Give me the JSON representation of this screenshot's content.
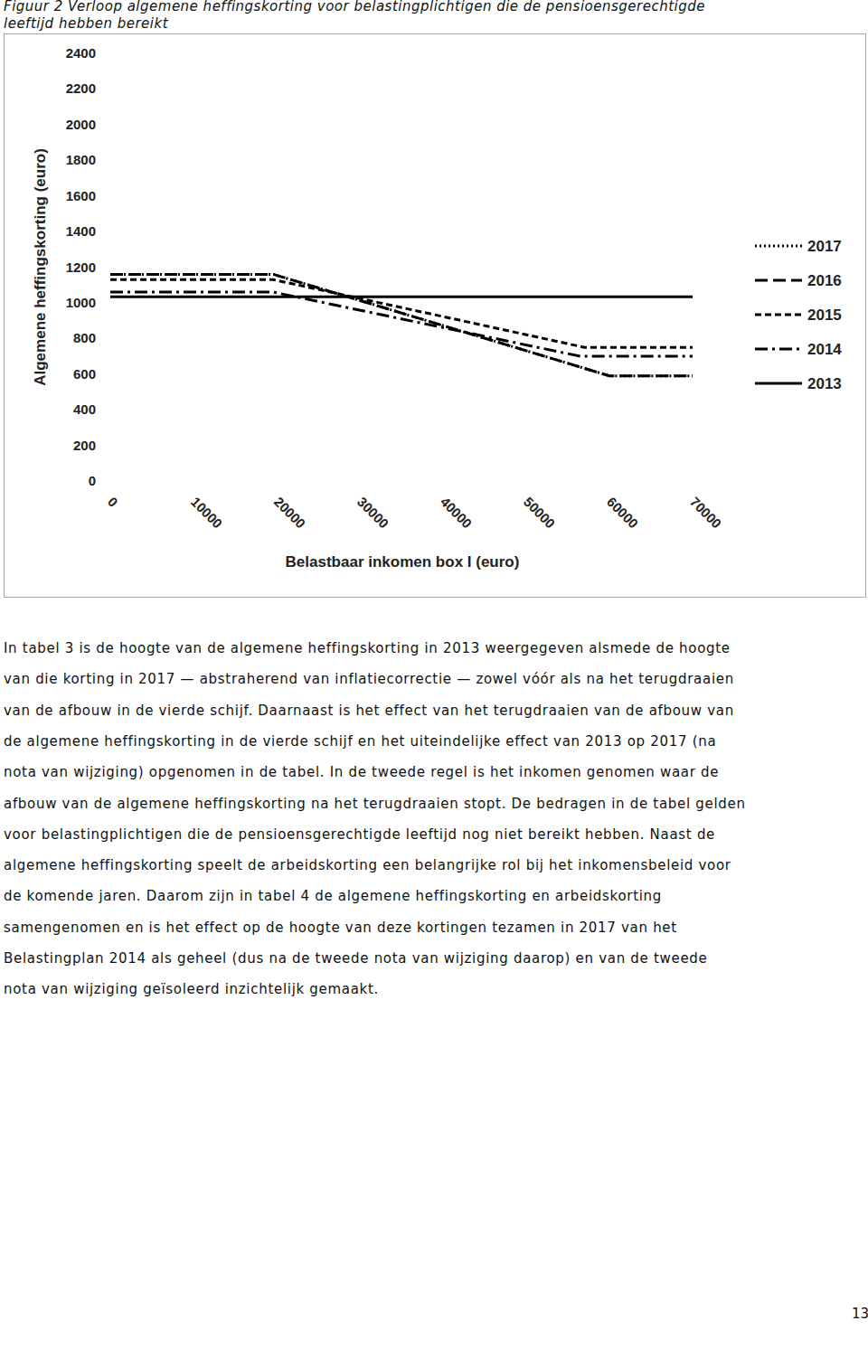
{
  "caption_lines": [
    "Figuur 2 Verloop algemene heffingskorting voor belastingplichtigen die de pensioensgerechtigde",
    "leeftijd hebben bereikt"
  ],
  "chart_data": {
    "type": "line",
    "x_label": "Belastbaar inkomen box I (euro)",
    "y_label": "Algemene heffingskorting (euro)",
    "xlim": [
      0,
      70000
    ],
    "xticks": [
      0,
      10000,
      20000,
      30000,
      40000,
      50000,
      60000,
      70000
    ],
    "ylim": [
      0,
      2400
    ],
    "yticks": [
      0,
      200,
      400,
      600,
      800,
      1000,
      1200,
      1400,
      1600,
      1800,
      2000,
      2200,
      2400
    ],
    "grid": false,
    "legend": "right",
    "series": [
      {
        "name": "2017",
        "color": "#000000",
        "line_style": "dotted",
        "x": [
          0,
          19600,
          60000,
          70000
        ],
        "values": [
          1160,
          1160,
          590,
          590
        ]
      },
      {
        "name": "2016",
        "color": "#000000",
        "line_style": "long-dash",
        "x": [
          0,
          19600,
          60000,
          70000
        ],
        "values": [
          1160,
          1160,
          590,
          590
        ]
      },
      {
        "name": "2015",
        "color": "#000000",
        "line_style": "dashed",
        "x": [
          0,
          19600,
          57000,
          70000
        ],
        "values": [
          1130,
          1130,
          750,
          750
        ]
      },
      {
        "name": "2014",
        "color": "#000000",
        "line_style": "dash-dot",
        "x": [
          0,
          19600,
          56500,
          70000
        ],
        "values": [
          1060,
          1060,
          700,
          700
        ]
      },
      {
        "name": "2013",
        "color": "#000000",
        "line_style": "solid",
        "x": [
          0,
          70000
        ],
        "values": [
          1034,
          1034
        ]
      }
    ]
  },
  "paragraph_lines": [
    "In tabel 3 is de hoogte van de algemene heffingskorting in 2013 weergegeven alsmede de hoogte",
    "van die korting in 2017 — abstraherend van inflatiecorrectie — zowel vóór als na het terugdraaien",
    "van de afbouw in de vierde schijf. Daarnaast is het effect van het terugdraaien van de afbouw van",
    "de algemene heffingskorting in de vierde schijf en het uiteindelijke effect van 2013 op 2017 (na",
    "nota van wijziging) opgenomen in de tabel. In de tweede regel is het inkomen genomen waar de",
    "afbouw van de algemene heffingskorting na het terugdraaien stopt. De bedragen in de tabel gelden",
    "voor belastingplichtigen die de pensioensgerechtigde leeftijd nog niet bereikt hebben. Naast de",
    "algemene heffingskorting speelt de arbeidskorting een belangrijke rol bij het inkomensbeleid voor",
    "de komende jaren. Daarom zijn in tabel 4 de algemene heffingskorting en arbeidskorting",
    "samengenomen en is het effect op de hoogte van deze kortingen tezamen in 2017 van het",
    "Belastingplan 2014 als geheel (dus na de tweede nota van wijziging daarop) en van de tweede",
    "nota van wijziging geïsoleerd inzichtelijk gemaakt."
  ],
  "page_number": "13"
}
